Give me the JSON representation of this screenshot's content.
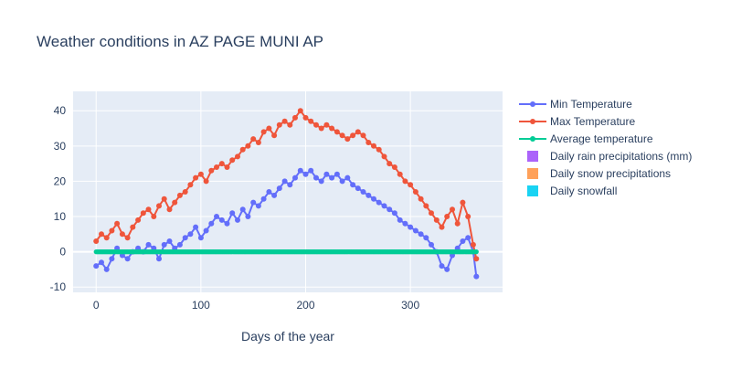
{
  "chart_data": {
    "type": "line",
    "title": "Weather conditions in AZ PAGE MUNI AP",
    "xlabel": "Days of the year",
    "ylabel": "",
    "xlim": [
      -22,
      388
    ],
    "ylim": [
      -11.5,
      45.5
    ],
    "x_ticks": [
      0,
      100,
      200,
      300
    ],
    "y_ticks": [
      -10,
      0,
      10,
      20,
      30,
      40
    ],
    "grid": true,
    "legend_position": "right",
    "series": [
      {
        "name": "Min Temperature",
        "kind": "line+markers",
        "color": "#636efa",
        "x": [
          0,
          5,
          10,
          15,
          20,
          25,
          30,
          35,
          40,
          45,
          50,
          55,
          60,
          65,
          70,
          75,
          80,
          85,
          90,
          95,
          100,
          105,
          110,
          115,
          120,
          125,
          130,
          135,
          140,
          145,
          150,
          155,
          160,
          165,
          170,
          175,
          180,
          185,
          190,
          195,
          200,
          205,
          210,
          215,
          220,
          225,
          230,
          235,
          240,
          245,
          250,
          255,
          260,
          265,
          270,
          275,
          280,
          285,
          290,
          295,
          300,
          305,
          310,
          315,
          320,
          325,
          330,
          335,
          340,
          345,
          350,
          355,
          360,
          363
        ],
        "values": [
          -4,
          -3,
          -5,
          -2,
          1,
          -1,
          -2,
          0,
          1,
          0,
          2,
          1,
          -2,
          2,
          3,
          1,
          2,
          4,
          5,
          7,
          4,
          6,
          8,
          10,
          9,
          8,
          11,
          9,
          12,
          10,
          14,
          13,
          15,
          17,
          16,
          18,
          20,
          19,
          21,
          23,
          22,
          23,
          21,
          20,
          22,
          21,
          22,
          20,
          21,
          19,
          18,
          17,
          16,
          15,
          14,
          13,
          12,
          11,
          9,
          8,
          7,
          6,
          5,
          4,
          2,
          0,
          -4,
          -5,
          -1,
          1,
          3,
          4,
          0,
          -7
        ]
      },
      {
        "name": "Max Temperature",
        "kind": "line+markers",
        "color": "#ef553b",
        "x": [
          0,
          5,
          10,
          15,
          20,
          25,
          30,
          35,
          40,
          45,
          50,
          55,
          60,
          65,
          70,
          75,
          80,
          85,
          90,
          95,
          100,
          105,
          110,
          115,
          120,
          125,
          130,
          135,
          140,
          145,
          150,
          155,
          160,
          165,
          170,
          175,
          180,
          185,
          190,
          195,
          200,
          205,
          210,
          215,
          220,
          225,
          230,
          235,
          240,
          245,
          250,
          255,
          260,
          265,
          270,
          275,
          280,
          285,
          290,
          295,
          300,
          305,
          310,
          315,
          320,
          325,
          330,
          335,
          340,
          345,
          350,
          355,
          360,
          363
        ],
        "values": [
          3,
          5,
          4,
          6,
          8,
          5,
          4,
          7,
          9,
          11,
          12,
          10,
          13,
          15,
          12,
          14,
          16,
          17,
          19,
          21,
          22,
          20,
          23,
          24,
          25,
          24,
          26,
          27,
          29,
          30,
          32,
          31,
          34,
          35,
          33,
          36,
          37,
          36,
          38,
          40,
          38,
          37,
          36,
          35,
          36,
          35,
          34,
          33,
          32,
          33,
          34,
          33,
          31,
          30,
          29,
          27,
          25,
          24,
          22,
          20,
          19,
          17,
          15,
          13,
          11,
          9,
          7,
          10,
          12,
          8,
          14,
          10,
          2,
          -2
        ]
      },
      {
        "name": "Average temperature",
        "kind": "line+markers",
        "color": "#00cc96",
        "x_range": [
          0,
          363
        ],
        "constant_value": 0
      },
      {
        "name": "Daily rain precipitations (mm)",
        "kind": "bar",
        "color": "#ab63fa",
        "values_all_zero": true
      },
      {
        "name": "Daily snow precipitations",
        "kind": "bar",
        "color": "#ffa15a",
        "values_all_zero": true
      },
      {
        "name": "Daily snowfall",
        "kind": "bar",
        "color": "#19d3f3",
        "values_all_zero": true
      }
    ]
  }
}
